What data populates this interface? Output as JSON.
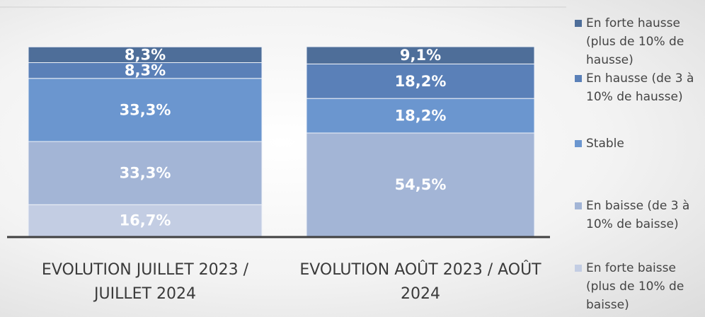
{
  "chart_data": {
    "type": "stacked_bar",
    "categories": [
      "EVOLUTION JUILLET 2023 / JUILLET 2024",
      "EVOLUTION AOÛT 2023 / AOÛT 2024"
    ],
    "ylim": [
      0,
      100
    ],
    "series": [
      {
        "name": "En forte baisse (plus de 10% de baisse)",
        "color": "#c3cde3",
        "values": [
          16.7,
          0
        ],
        "value_labels": [
          "16,7%",
          null
        ]
      },
      {
        "name": "En baisse (de 3 à 10% de baisse)",
        "color": "#a3b5d6",
        "values": [
          33.3,
          54.5
        ],
        "value_labels": [
          "33,3%",
          "54,5%"
        ]
      },
      {
        "name": "Stable",
        "color": "#6b96cf",
        "values": [
          33.3,
          18.2
        ],
        "value_labels": [
          "33,3%",
          "18,2%"
        ]
      },
      {
        "name": "En hausse (de 3 à 10% de hausse)",
        "color": "#5a80b8",
        "values": [
          8.3,
          18.2
        ],
        "value_labels": [
          "8,3%",
          "18,2%"
        ]
      },
      {
        "name": "En forte hausse (plus de 10% de hausse)",
        "color": "#4e6e99",
        "values": [
          8.3,
          9.1
        ],
        "value_labels": [
          "8,3%",
          "9,1%"
        ]
      }
    ]
  }
}
